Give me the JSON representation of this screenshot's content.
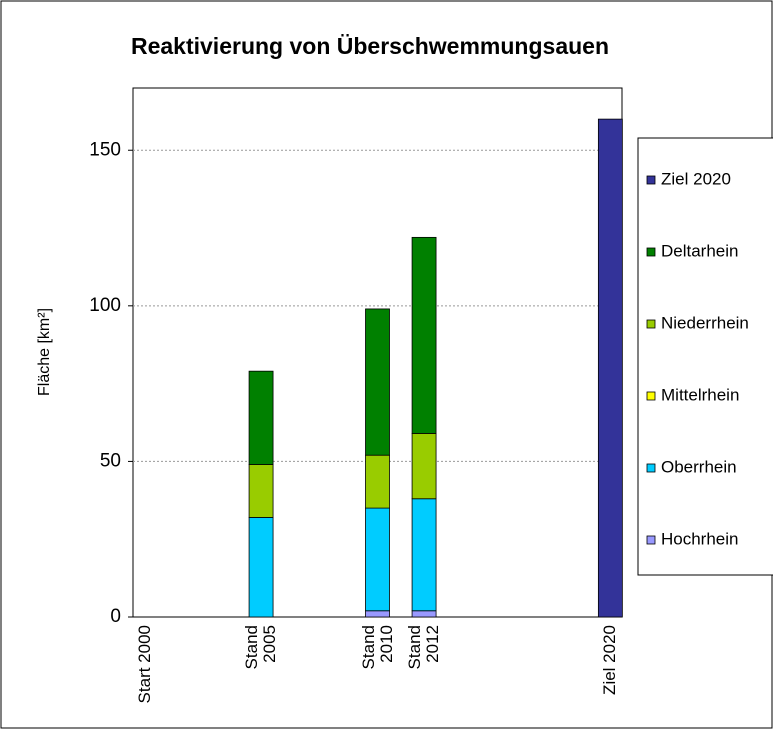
{
  "chart_data": {
    "type": "stacked_bar",
    "title": "Reaktivierung von Überschwemmungsauen",
    "y_label": "Fläche [km²]",
    "categories": [
      "Start 2000",
      null,
      null,
      null,
      null,
      "Stand\n2005",
      null,
      null,
      null,
      null,
      "Stand\n2010",
      null,
      "Stand\n2012",
      null,
      null,
      null,
      null,
      null,
      null,
      null,
      "Ziel 2020"
    ],
    "series": [
      {
        "name": "Hochrhein",
        "color": "#9999ff",
        "values": [
          null,
          null,
          null,
          null,
          null,
          0,
          null,
          null,
          null,
          null,
          2,
          null,
          2,
          null,
          null,
          null,
          null,
          null,
          null,
          null,
          null
        ]
      },
      {
        "name": "Oberrhein",
        "color": "#00ccff",
        "values": [
          null,
          null,
          null,
          null,
          null,
          32,
          null,
          null,
          null,
          null,
          33,
          null,
          36,
          null,
          null,
          null,
          null,
          null,
          null,
          null,
          null
        ]
      },
      {
        "name": "Mittelrhein",
        "color": "#ffff00",
        "values": [
          null,
          null,
          null,
          null,
          null,
          0,
          null,
          null,
          null,
          null,
          0,
          null,
          0,
          null,
          null,
          null,
          null,
          null,
          null,
          null,
          null
        ]
      },
      {
        "name": "Niederrhein",
        "color": "#99cc00",
        "values": [
          null,
          null,
          null,
          null,
          null,
          17,
          null,
          null,
          null,
          null,
          17,
          null,
          21,
          null,
          null,
          null,
          null,
          null,
          null,
          null,
          null
        ]
      },
      {
        "name": "Deltarhein",
        "color": "#008000",
        "values": [
          null,
          null,
          null,
          null,
          null,
          30,
          null,
          null,
          null,
          null,
          47,
          null,
          63,
          null,
          null,
          null,
          null,
          null,
          null,
          null,
          null
        ]
      },
      {
        "name": "Ziel 2020",
        "color": "#333399",
        "values": [
          null,
          null,
          null,
          null,
          null,
          null,
          null,
          null,
          null,
          null,
          null,
          null,
          null,
          null,
          null,
          null,
          null,
          null,
          null,
          null,
          160
        ]
      }
    ],
    "ylim": [
      0,
      170
    ],
    "yticks": [
      0,
      50,
      100,
      150
    ],
    "grid": true,
    "legend": "right"
  }
}
